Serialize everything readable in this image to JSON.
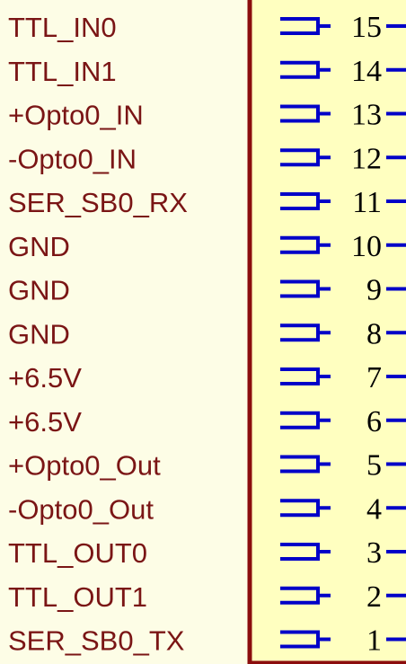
{
  "colors": {
    "background": "#FDFDE6",
    "connector_body_fill": "#FFFFC0",
    "connector_body_border": "#8B0D0D",
    "net_label_text": "#7A1515",
    "pin_graphic": "#0000C8",
    "pin_number_text": "#000000"
  },
  "connector": {
    "pins": [
      {
        "number": "15",
        "net": "TTL_IN0"
      },
      {
        "number": "14",
        "net": "TTL_IN1"
      },
      {
        "number": "13",
        "net": "+Opto0_IN"
      },
      {
        "number": "12",
        "net": "-Opto0_IN"
      },
      {
        "number": "11",
        "net": "SER_SB0_RX"
      },
      {
        "number": "10",
        "net": "GND"
      },
      {
        "number": "9",
        "net": "GND"
      },
      {
        "number": "8",
        "net": "GND"
      },
      {
        "number": "7",
        "net": "+6.5V"
      },
      {
        "number": "6",
        "net": "+6.5V"
      },
      {
        "number": "5",
        "net": "+Opto0_Out"
      },
      {
        "number": "4",
        "net": "-Opto0_Out"
      },
      {
        "number": "3",
        "net": "TTL_OUT0"
      },
      {
        "number": "2",
        "net": "TTL_OUT1"
      },
      {
        "number": "1",
        "net": "SER_SB0_TX"
      }
    ]
  }
}
